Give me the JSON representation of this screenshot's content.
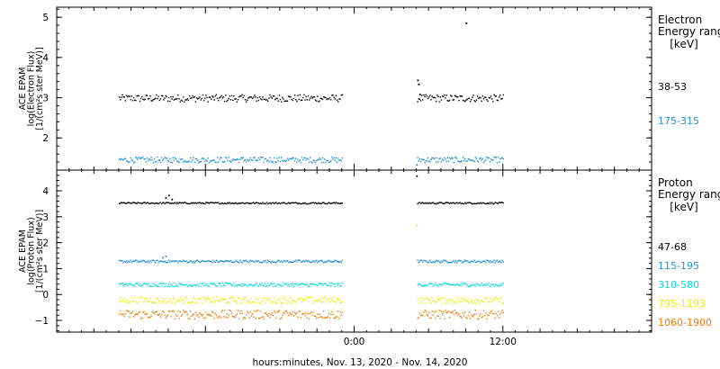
{
  "chart_data": [
    {
      "type": "scatter",
      "panel": "electron",
      "ylabel": [
        "ACE EPAM",
        "log(Electron Flux)",
        "[1/(cm²s ster MeV)]"
      ],
      "ylim": [
        1.2,
        5.25
      ],
      "yticks": [
        2,
        3,
        4,
        5
      ],
      "legend_title": [
        "Electron",
        "Energy ranges",
        "[keV]"
      ],
      "data_gap": [
        "2020-11-13 23:00",
        "2020-11-14 05:00"
      ],
      "series": [
        {
          "name": "38-53",
          "color": "#000000",
          "level": 3.0,
          "noise": 0.09,
          "extra": [
            {
              "x": "2020-11-14 05:05",
              "y": 3.45
            },
            {
              "x": "2020-11-14 05:10",
              "y": 3.35
            },
            {
              "x": "2020-11-14 05:15",
              "y": 3.1
            },
            {
              "x": "2020-11-14 09:00",
              "y": 4.87
            }
          ]
        },
        {
          "name": "175-315",
          "color": "#1f8fd9",
          "level": 1.47,
          "noise": 0.07,
          "extra": [
            {
              "x": "2020-11-14 05:00",
              "y": 1.35
            }
          ]
        }
      ]
    },
    {
      "type": "scatter",
      "panel": "proton",
      "ylabel": [
        "ACE EPAM",
        "log(Proton Flux)",
        "[1/(cm²s ster MeV)]"
      ],
      "ylim": [
        -1.45,
        4.8
      ],
      "yticks": [
        -1,
        0,
        1,
        2,
        3,
        4
      ],
      "legend_title": [
        "Proton",
        "Energy ranges",
        "[keV]"
      ],
      "data_gap": [
        "2020-11-13 23:00",
        "2020-11-14 05:00"
      ],
      "series": [
        {
          "name": "47-68",
          "color": "#000000",
          "level": 3.55,
          "noise": 0.03,
          "extra": [
            {
              "x": "2020-11-13 08:45",
              "y": 3.75
            },
            {
              "x": "2020-11-13 09:00",
              "y": 3.85
            },
            {
              "x": "2020-11-13 09:15",
              "y": 3.7
            },
            {
              "x": "2020-11-14 05:00",
              "y": 4.6
            }
          ]
        },
        {
          "name": "115-195",
          "color": "#1f8fd9",
          "level": 1.3,
          "noise": 0.05,
          "extra": [
            {
              "x": "2020-11-13 08:30",
              "y": 1.45
            },
            {
              "x": "2020-11-13 08:45",
              "y": 1.5
            }
          ]
        },
        {
          "name": "310-580",
          "color": "#00dcdc",
          "level": 0.4,
          "noise": 0.07,
          "extra": []
        },
        {
          "name": "795-1193",
          "color": "#e6f000",
          "level": -0.2,
          "noise": 0.12,
          "extra": [
            {
              "x": "2020-11-14 05:00",
              "y": 2.7
            }
          ]
        },
        {
          "name": "1060-1900",
          "color": "#f07800",
          "level": -0.75,
          "noise": 0.17,
          "extra": []
        }
      ]
    }
  ],
  "x_axis": {
    "start": "2020-11-13 00:00",
    "end": "2020-11-15 00:00",
    "data_start": "2020-11-13 05:00",
    "data_end": "2020-11-14 12:00",
    "tick_labels": [
      {
        "x": "2020-11-14 00:00",
        "label": "0:00"
      },
      {
        "x": "2020-11-14 12:00",
        "label": "12:00"
      }
    ],
    "label": "hours:minutes, Nov. 13, 2020 - Nov. 14, 2020"
  }
}
